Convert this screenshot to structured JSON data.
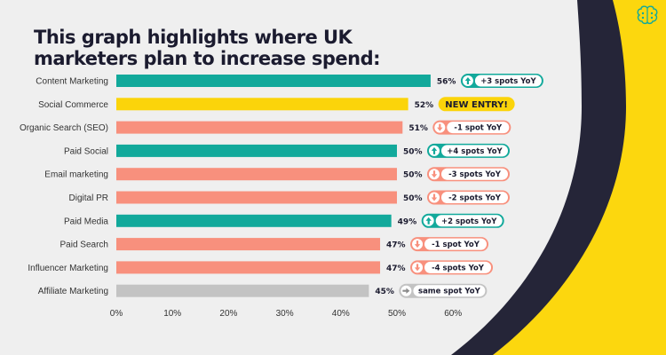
{
  "colors": {
    "background": "#efefef",
    "teal": "#12a99b",
    "yellow": "#fbd40a",
    "salmon": "#f8907d",
    "grey": "#c3c3c3",
    "navy": "#252538",
    "accent_yellow": "#fcd70e",
    "badge_up": "#12a99b",
    "badge_new": "#fbd40a",
    "badge_down": "#f8907d",
    "badge_same": "#c3c3c3"
  },
  "header": {
    "title": "This graph highlights where UK marketers plan to increase spend:",
    "logo_icon": "brain-icon"
  },
  "chart_data": {
    "type": "bar",
    "orientation": "horizontal",
    "title": "This graph highlights where UK marketers plan to increase spend:",
    "xlabel": "",
    "ylabel": "",
    "xlim": [
      0,
      60
    ],
    "x_ticks": [
      "0%",
      "10%",
      "20%",
      "30%",
      "40%",
      "50%",
      "60%"
    ],
    "grid": false,
    "categories": [
      "Content Marketing",
      "Social Commerce",
      "Organic Search (SEO)",
      "Paid Social",
      "Email marketing",
      "Digital PR",
      "Paid Media",
      "Paid Search",
      "Influencer Marketing",
      "Affiliate Marketing"
    ],
    "values": [
      56,
      52,
      51,
      50,
      50,
      50,
      49,
      47,
      47,
      45
    ],
    "value_labels": [
      "56%",
      "52%",
      "51%",
      "50%",
      "50%",
      "50%",
      "49%",
      "47%",
      "47%",
      "45%"
    ],
    "bar_status": [
      "up",
      "new",
      "down",
      "up",
      "down",
      "down",
      "up",
      "down",
      "down",
      "same"
    ],
    "badges": [
      "+3 spots YoY",
      "NEW ENTRY!",
      "-1 spot YoY",
      "+4 spots YoY",
      "-3 spots YoY",
      "-2 spots YoY",
      "+2 spots YoY",
      "-1 spot YoY",
      "-4 spots YoY",
      "same spot YoY"
    ]
  }
}
